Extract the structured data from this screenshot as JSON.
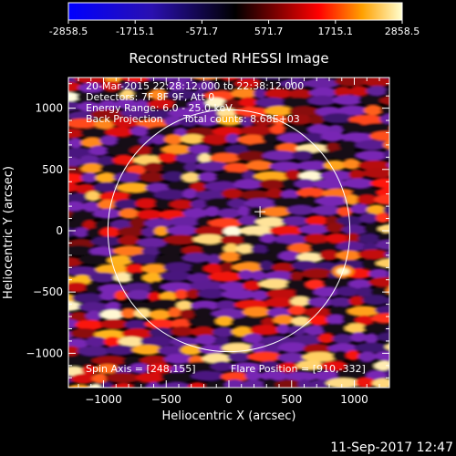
{
  "chart_data": {
    "type": "heatmap",
    "title": "Reconstructed RHESSI Image",
    "xlabel": "Heliocentric X (arcsec)",
    "ylabel": "Heliocentric Y (arcsec)",
    "xlim": [
      -1280,
      1280
    ],
    "ylim": [
      -1280,
      1250
    ],
    "xticks": [
      -1000,
      -500,
      0,
      500,
      1000
    ],
    "yticks": [
      -1000,
      -500,
      0,
      500,
      1000
    ],
    "colorbar": {
      "min": -2858.5,
      "max": 2858.5,
      "ticks": [
        "-2858.5",
        "-1715.1",
        "-571.7",
        "571.7",
        "1715.1",
        "2858.5"
      ]
    },
    "annotations": [
      "20-Mar-2015 22:28:12.000 to 22:38:12.000",
      "Detectors: 7F 8F 9F, Att 0",
      "Energy Range: 6.0 - 25.0 keV",
      "Back Projection",
      "Total counts: 8.68E+03"
    ],
    "spin_axis_label": "Spin Axis = [248,155]",
    "flare_position_label": "Flare Position = [910,-332]",
    "spin_axis": [
      248,
      155
    ],
    "flare_position": [
      910,
      -332
    ],
    "solar_limb_radius": 965,
    "footer_date": "11-Sep-2017 12:47"
  },
  "colors": {
    "background": "#000000",
    "foreground": "#ffffff"
  }
}
